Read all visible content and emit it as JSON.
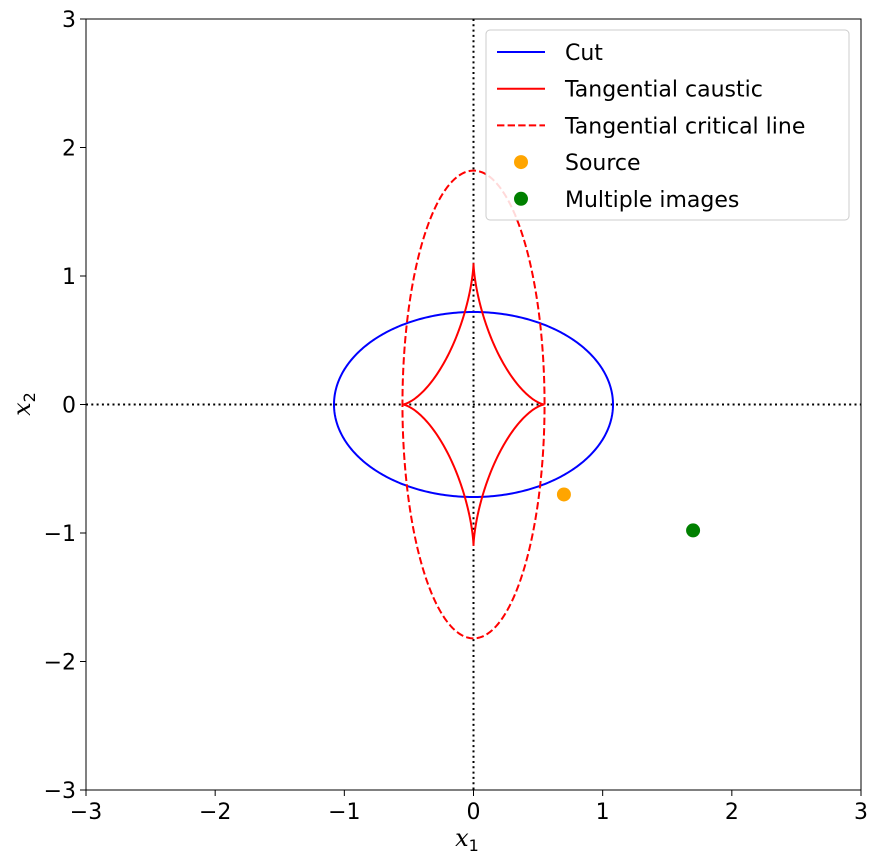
{
  "chart_data": {
    "type": "line",
    "xlabel": "x",
    "xlabel_sub": "1",
    "ylabel": "x",
    "ylabel_sub": "2",
    "xlim": [
      -3,
      3
    ],
    "ylim": [
      -3,
      3
    ],
    "xticks": [
      -3,
      -2,
      -1,
      0,
      1,
      2,
      3
    ],
    "yticks": [
      -3,
      -2,
      -1,
      0,
      1,
      2,
      3
    ],
    "xtick_labels": [
      "−3",
      "−2",
      "−1",
      "0",
      "1",
      "2",
      "3"
    ],
    "ytick_labels": [
      "−3",
      "−2",
      "−1",
      "0",
      "1",
      "2",
      "3"
    ],
    "grid": false,
    "legend_position": "top-right",
    "reference_lines": {
      "x": 0,
      "y": 0,
      "style": "dotted",
      "color": "#000000"
    },
    "series": [
      {
        "name": "Cut",
        "kind": "ellipse",
        "color": "#0000ff",
        "linestyle": "solid",
        "center": [
          0,
          0
        ],
        "semi_axis_x": 1.08,
        "semi_axis_y": 0.72
      },
      {
        "name": "Tangential caustic",
        "kind": "astroid",
        "color": "#ff0000",
        "linestyle": "solid",
        "center": [
          0,
          0
        ],
        "cusp_x": 0.55,
        "cusp_y": 1.1
      },
      {
        "name": "Tangential critical line",
        "kind": "ellipse",
        "color": "#ff0000",
        "linestyle": "dashed",
        "center": [
          0,
          0
        ],
        "semi_axis_x": 0.55,
        "semi_axis_y": 1.82
      },
      {
        "name": "Source",
        "kind": "points",
        "color": "#ffa500",
        "points": [
          [
            0.7,
            -0.7
          ]
        ]
      },
      {
        "name": "Multiple images",
        "kind": "points",
        "color": "#008000",
        "points": [
          [
            1.7,
            -0.98
          ]
        ]
      }
    ]
  }
}
